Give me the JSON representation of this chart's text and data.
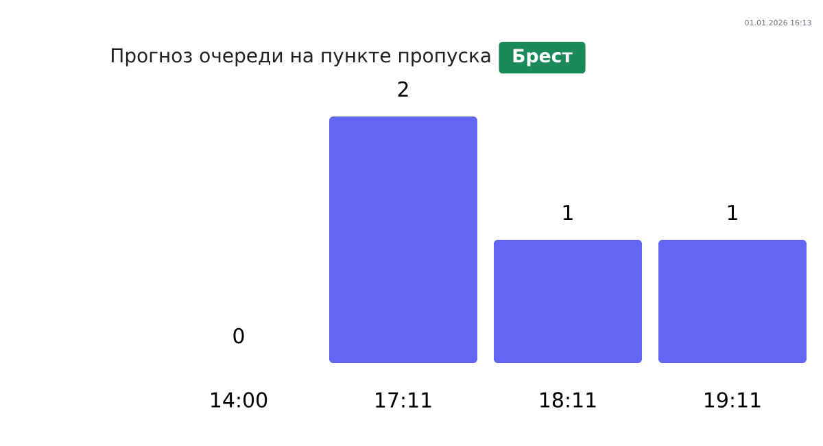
{
  "chart_data": {
    "type": "bar",
    "title": "Прогноз очереди на пункте пропуска",
    "subtitle": "Брест",
    "annotations": [
      "01.01.2026 16:13"
    ],
    "categories": [
      "14:00",
      "17:11",
      "18:11",
      "19:11"
    ],
    "values": [
      0,
      2,
      1,
      1
    ],
    "color": "#6366f1",
    "ylim": [
      0,
      2
    ],
    "data_labels": true,
    "tick_labels": "x"
  }
}
